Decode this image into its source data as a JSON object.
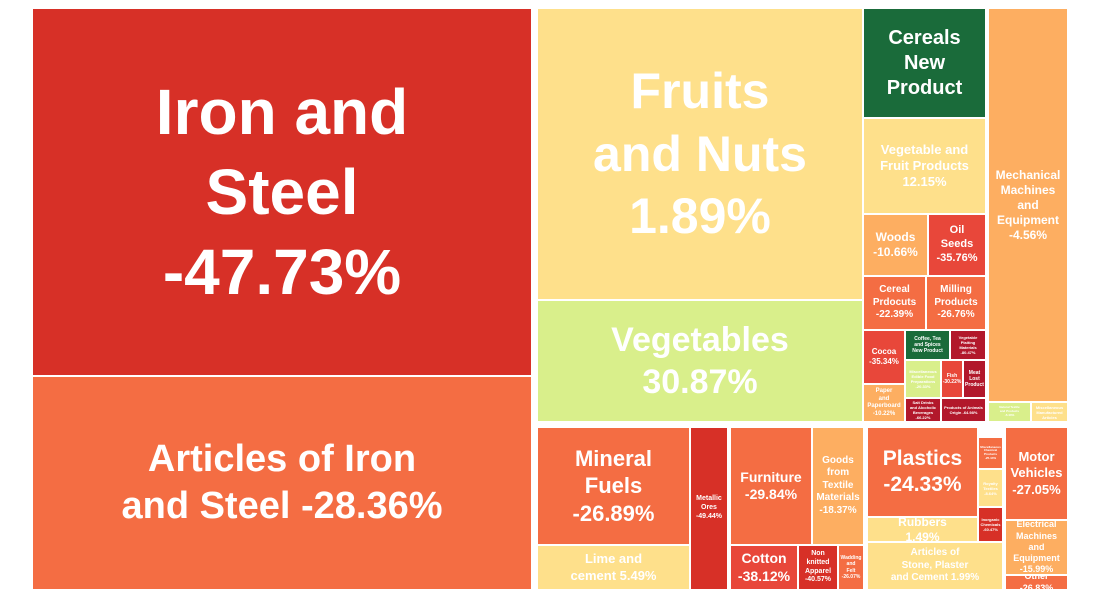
{
  "chart_data": {
    "type": "treemap",
    "title": "",
    "colors": {
      "dark_red": "#d73027",
      "red": "#e8473a",
      "orange_red": "#f46d43",
      "orange": "#fdae61",
      "yellow": "#fee08b",
      "light_green": "#d9ef8b",
      "dark_green": "#1a6b3a",
      "crimson": "#b2182b"
    },
    "tiles": [
      {
        "lines": [
          "Iron and",
          "Steel",
          "-47.73%"
        ],
        "value": -47.73,
        "color": "dark_red"
      },
      {
        "lines": [
          "Articles of Iron",
          "and Steel -28.36%"
        ],
        "value": -28.36,
        "color": "orange_red"
      },
      {
        "lines": [
          "Fruits",
          "and Nuts",
          "1.89%"
        ],
        "value": 1.89,
        "color": "yellow"
      },
      {
        "lines": [
          "Vegetables",
          "30.87%"
        ],
        "value": 30.87,
        "color": "light_green"
      },
      {
        "lines": [
          "Cereals",
          "New",
          "Product"
        ],
        "value": null,
        "color": "dark_green"
      },
      {
        "lines": [
          "Vegetable and",
          "Fruit Products",
          "12.15%"
        ],
        "value": 12.15,
        "color": "yellow"
      },
      {
        "lines": [
          "Woods",
          "-10.66%"
        ],
        "value": -10.66,
        "color": "orange"
      },
      {
        "lines": [
          "Oil",
          "Seeds",
          "-35.76%"
        ],
        "value": -35.76,
        "color": "red"
      },
      {
        "lines": [
          "Cereal",
          "Prdocuts",
          "-22.39%"
        ],
        "value": -22.39,
        "color": "orange_red"
      },
      {
        "lines": [
          "Milling",
          "Products",
          "-26.76%"
        ],
        "value": -26.76,
        "color": "orange_red"
      },
      {
        "lines": [
          "Cocoa",
          "-35.34%"
        ],
        "value": -35.34,
        "color": "red"
      },
      {
        "lines": [
          "Coffee, Tea",
          "and Spices",
          "New Product"
        ],
        "value": null,
        "color": "dark_green"
      },
      {
        "lines": [
          "Vegetable",
          "Plaiting",
          "Materials",
          "-80.47%"
        ],
        "value": -80.47,
        "color": "crimson"
      },
      {
        "lines": [
          "Miscellaneous",
          "Edible Food",
          "Preparations",
          "-20.33%"
        ],
        "value": -20.33,
        "color": "light_green"
      },
      {
        "lines": [
          "Fish",
          "-30.22%"
        ],
        "value": -30.22,
        "color": "red"
      },
      {
        "lines": [
          "Meat",
          "Lost",
          "Product"
        ],
        "value": null,
        "color": "crimson"
      },
      {
        "lines": [
          "Paper",
          "and",
          "Paperboard",
          "-10.22%"
        ],
        "value": -10.22,
        "color": "orange"
      },
      {
        "lines": [
          "Salt Drinks",
          "and Alcoholic",
          "Beverages",
          "-66.22%"
        ],
        "value": -66.22,
        "color": "crimson"
      },
      {
        "lines": [
          "Products of Animals",
          "Origin -64.98%"
        ],
        "value": -64.98,
        "color": "crimson"
      },
      {
        "lines": [
          "Mechanical",
          "Machines",
          "and",
          "Equipment",
          "-4.56%"
        ],
        "value": -4.56,
        "color": "orange"
      },
      {
        "lines": [
          "Natural Textile",
          "and Products",
          "-5.43%"
        ],
        "value": -5.43,
        "color": "light_green"
      },
      {
        "lines": [
          "Miscellaneous",
          "Manufactured",
          "Articles"
        ],
        "value": null,
        "color": "yellow"
      },
      {
        "lines": [
          "Mineral",
          "Fuels",
          "-26.89%"
        ],
        "value": -26.89,
        "color": "orange_red"
      },
      {
        "lines": [
          "Lime and",
          "cement 5.49%"
        ],
        "value": 5.49,
        "color": "yellow"
      },
      {
        "lines": [
          "Metallic",
          "Ores",
          "-49.44%"
        ],
        "value": -49.44,
        "color": "dark_red"
      },
      {
        "lines": [
          "Furniture",
          "-29.84%"
        ],
        "value": -29.84,
        "color": "orange_red"
      },
      {
        "lines": [
          "Goods",
          "from",
          "Textile",
          "Materials",
          "-18.37%"
        ],
        "value": -18.37,
        "color": "orange"
      },
      {
        "lines": [
          "Cotton",
          "-38.12%"
        ],
        "value": -38.12,
        "color": "red"
      },
      {
        "lines": [
          "Non",
          "knitted",
          "Apparel",
          "-40.57%"
        ],
        "value": -40.57,
        "color": "dark_red"
      },
      {
        "lines": [
          "Wadding",
          "and",
          "Felt",
          "-26.07%"
        ],
        "value": -26.07,
        "color": "orange_red"
      },
      {
        "lines": [
          "Plastics",
          "-24.33%"
        ],
        "value": -24.33,
        "color": "orange_red"
      },
      {
        "lines": [
          "Rubbers",
          "1.49%"
        ],
        "value": 1.49,
        "color": "yellow"
      },
      {
        "lines": [
          "Articles of",
          "Stone, Plaster",
          "and Cement 1.99%"
        ],
        "value": 1.99,
        "color": "yellow"
      },
      {
        "lines": [
          "Miscellaneous",
          "Chemical",
          "Products",
          "-25.44%"
        ],
        "value": -25.44,
        "color": "orange_red"
      },
      {
        "lines": [
          "Royalty",
          "Textiles",
          "-8.64%"
        ],
        "value": -8.64,
        "color": "yellow"
      },
      {
        "lines": [
          "Inorganic",
          "Chemicals",
          "-60.47%"
        ],
        "value": -60.47,
        "color": "dark_red"
      },
      {
        "lines": [
          "Motor",
          "Vehicles",
          "-27.05%"
        ],
        "value": -27.05,
        "color": "orange_red"
      },
      {
        "lines": [
          "Electrical",
          "Machines and",
          "Equipment",
          "-15.99%"
        ],
        "value": -15.99,
        "color": "orange"
      },
      {
        "lines": [
          "Other",
          "-26.83%"
        ],
        "value": -26.83,
        "color": "orange_red"
      }
    ]
  }
}
